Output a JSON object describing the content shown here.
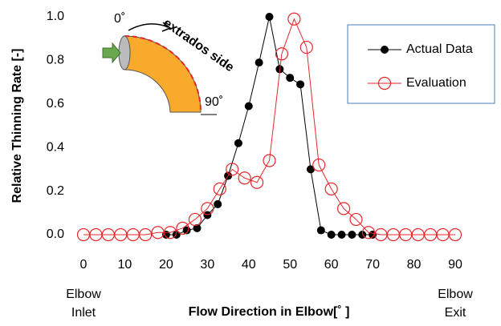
{
  "chart_data": {
    "type": "line",
    "x_label": "Flow Direction in Elbow[˚ ]",
    "y_label": "Relative Thinning Rate [-]",
    "xlim": [
      0,
      90
    ],
    "xticks": [
      0,
      10,
      20,
      30,
      40,
      50,
      60,
      70,
      80,
      90
    ],
    "ylim": [
      0,
      1
    ],
    "yticks": [
      {
        "value": 0,
        "label": "0.0"
      },
      0.2,
      0.4,
      0.6,
      0.8,
      {
        "value": 1,
        "label": "1.0"
      }
    ],
    "grid": false,
    "legend": "upper right",
    "annotations": [
      "Elbow",
      "Inlet",
      "Elbow",
      "Exit",
      "0˚",
      "extrados side",
      "90˚"
    ],
    "series": [
      {
        "name": "Actual Data",
        "color": "#000000",
        "marker": "filled",
        "x": [
          20,
          22.5,
          25,
          27.5,
          30,
          32.5,
          35,
          37.5,
          40,
          42.5,
          45,
          47.5,
          50,
          52.5,
          55,
          57.5,
          60,
          62.5,
          65,
          67.5,
          70
        ],
        "values": [
          0,
          0,
          0.02,
          0.03,
          0.09,
          0.14,
          0.27,
          0.42,
          0.59,
          0.79,
          1.0,
          0.76,
          0.72,
          0.69,
          0.3,
          0.02,
          0,
          0,
          0,
          0,
          0
        ]
      },
      {
        "name": "Evaluation",
        "color": "#e8262a",
        "marker": "open",
        "x": [
          0,
          3,
          6,
          9,
          12,
          15,
          18,
          21,
          24,
          27,
          30,
          33,
          36,
          39,
          42,
          45,
          48,
          51,
          54,
          57,
          60,
          63,
          66,
          69,
          72,
          75,
          78,
          81,
          84,
          87,
          90
        ],
        "values": [
          0,
          0,
          0,
          0,
          0,
          0,
          0.01,
          0.01,
          0.03,
          0.07,
          0.12,
          0.21,
          0.3,
          0.26,
          0.24,
          0.34,
          0.83,
          0.99,
          0.86,
          0.32,
          0.21,
          0.12,
          0.07,
          0.01,
          0,
          0,
          0,
          0,
          0,
          0,
          0
        ]
      }
    ]
  }
}
